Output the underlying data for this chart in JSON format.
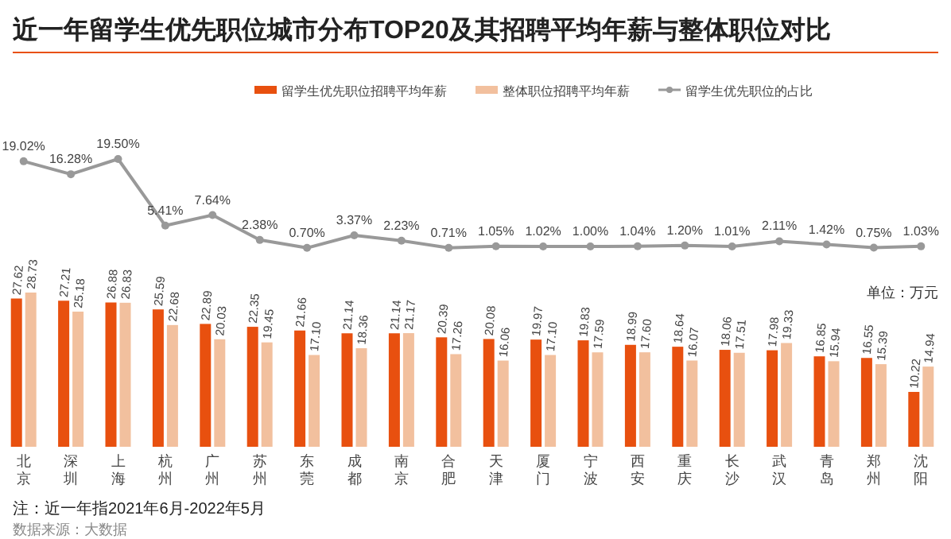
{
  "chart_data": [
    {
      "type": "line",
      "title": "近一年留学生优先职位城市分布TOP20及其招聘平均年薪与整体职位对比",
      "categories": [
        null,
        null,
        null,
        null,
        null,
        null,
        null,
        null,
        null,
        null,
        null,
        null,
        null,
        null,
        null,
        null,
        null,
        null,
        null,
        null
      ],
      "series": [
        {
          "name": "留学生优先职位的占比",
          "color": "#999999",
          "values": [
            19.02,
            16.28,
            19.5,
            5.41,
            7.64,
            2.38,
            0.7,
            3.37,
            2.23,
            0.71,
            1.05,
            1.02,
            1.0,
            1.04,
            1.2,
            1.01,
            2.11,
            1.42,
            0.75,
            1.03
          ],
          "value_labels": [
            "19.02%",
            "16.28%",
            "19.50%",
            "5.41%",
            "7.64%",
            "2.38%",
            "0.70%",
            "3.37%",
            "2.23%",
            "0.71%",
            "1.05%",
            "1.02%",
            "1.00%",
            "1.04%",
            "1.20%",
            "1.01%",
            "2.11%",
            "1.42%",
            "0.75%",
            "1.03%"
          ]
        }
      ],
      "marker": "circle",
      "legend": "top",
      "tick_labels": false
    },
    {
      "type": "bar",
      "categories": [
        "北京",
        "深圳",
        "上海",
        "杭州",
        "广州",
        "苏州",
        "东莞",
        "成都",
        "南京",
        "合肥",
        "天津",
        "厦门",
        "宁波",
        "西安",
        "重庆",
        "长沙",
        "武汉",
        "青岛",
        "郑州",
        "沈阳"
      ],
      "series": [
        {
          "name": "留学生优先职位招聘平均年薪",
          "color": "#e8500f",
          "values": [
            27.62,
            27.21,
            26.88,
            25.59,
            22.89,
            22.35,
            21.66,
            21.14,
            21.14,
            20.39,
            20.08,
            19.97,
            19.83,
            18.99,
            18.64,
            18.06,
            17.98,
            16.85,
            16.55,
            10.22
          ],
          "value_labels": [
            "27.62",
            "27.21",
            "26.88",
            "25.59",
            "22.89",
            "22.35",
            "21.66",
            "21.14",
            "21.14",
            "20.39",
            "20.08",
            "19.97",
            "19.83",
            "18.99",
            "18.64",
            "18.06",
            "17.98",
            "16.85",
            "16.55",
            "10.22"
          ]
        },
        {
          "name": "整体职位招聘平均年薪",
          "color": "#f2c09e",
          "values": [
            28.73,
            25.18,
            26.83,
            22.68,
            20.03,
            19.45,
            17.1,
            18.36,
            21.17,
            17.26,
            16.06,
            17.1,
            17.59,
            17.6,
            16.07,
            17.51,
            19.33,
            15.94,
            15.39,
            14.94
          ],
          "value_labels": [
            "28.73",
            "25.18",
            "26.83",
            "22.68",
            "20.03",
            "19.45",
            "17.10",
            "18.36",
            "21.17",
            "17.26",
            "16.06",
            "17.10",
            "17.59",
            "17.60",
            "16.07",
            "17.51",
            "19.33",
            "15.94",
            "15.39",
            "14.94"
          ]
        }
      ],
      "legend": "top",
      "tick_labels": "x",
      "annotations": [
        "单位：万元",
        "注：近一年指2021年6月-2022年5月",
        "数据来源：大数据"
      ]
    }
  ]
}
